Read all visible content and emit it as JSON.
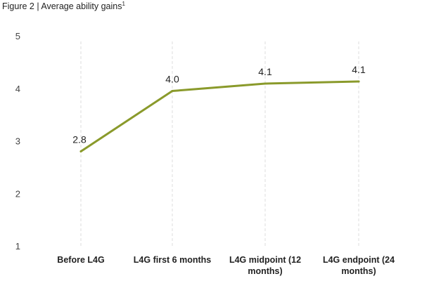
{
  "figure": {
    "title": "Figure 2 | Average ability gains",
    "title_footnote": "1"
  },
  "chart_data": {
    "type": "line",
    "title": "Figure 2 | Average ability gains",
    "xlabel": "",
    "ylabel": "",
    "categories": [
      "Before L4G",
      "L4G first 6 months",
      "L4G midpoint (12 months)",
      "L4G endpoint (24 months)"
    ],
    "category_lines": [
      [
        "Before L4G"
      ],
      [
        "L4G first 6 months"
      ],
      [
        "L4G midpoint (12",
        "months)"
      ],
      [
        "L4G endpoint (24",
        "months)"
      ]
    ],
    "series": [
      {
        "values": [
          2.8,
          3.95,
          4.09,
          4.13
        ],
        "color": "#8a9a2b"
      }
    ],
    "data_labels": [
      "2.8",
      "4.0",
      "4.1",
      "4.1"
    ],
    "yticks": [
      1,
      2,
      3,
      4,
      5
    ],
    "ylim": [
      1,
      5
    ],
    "grid": "vertical dashed at categories",
    "legend": "none"
  }
}
